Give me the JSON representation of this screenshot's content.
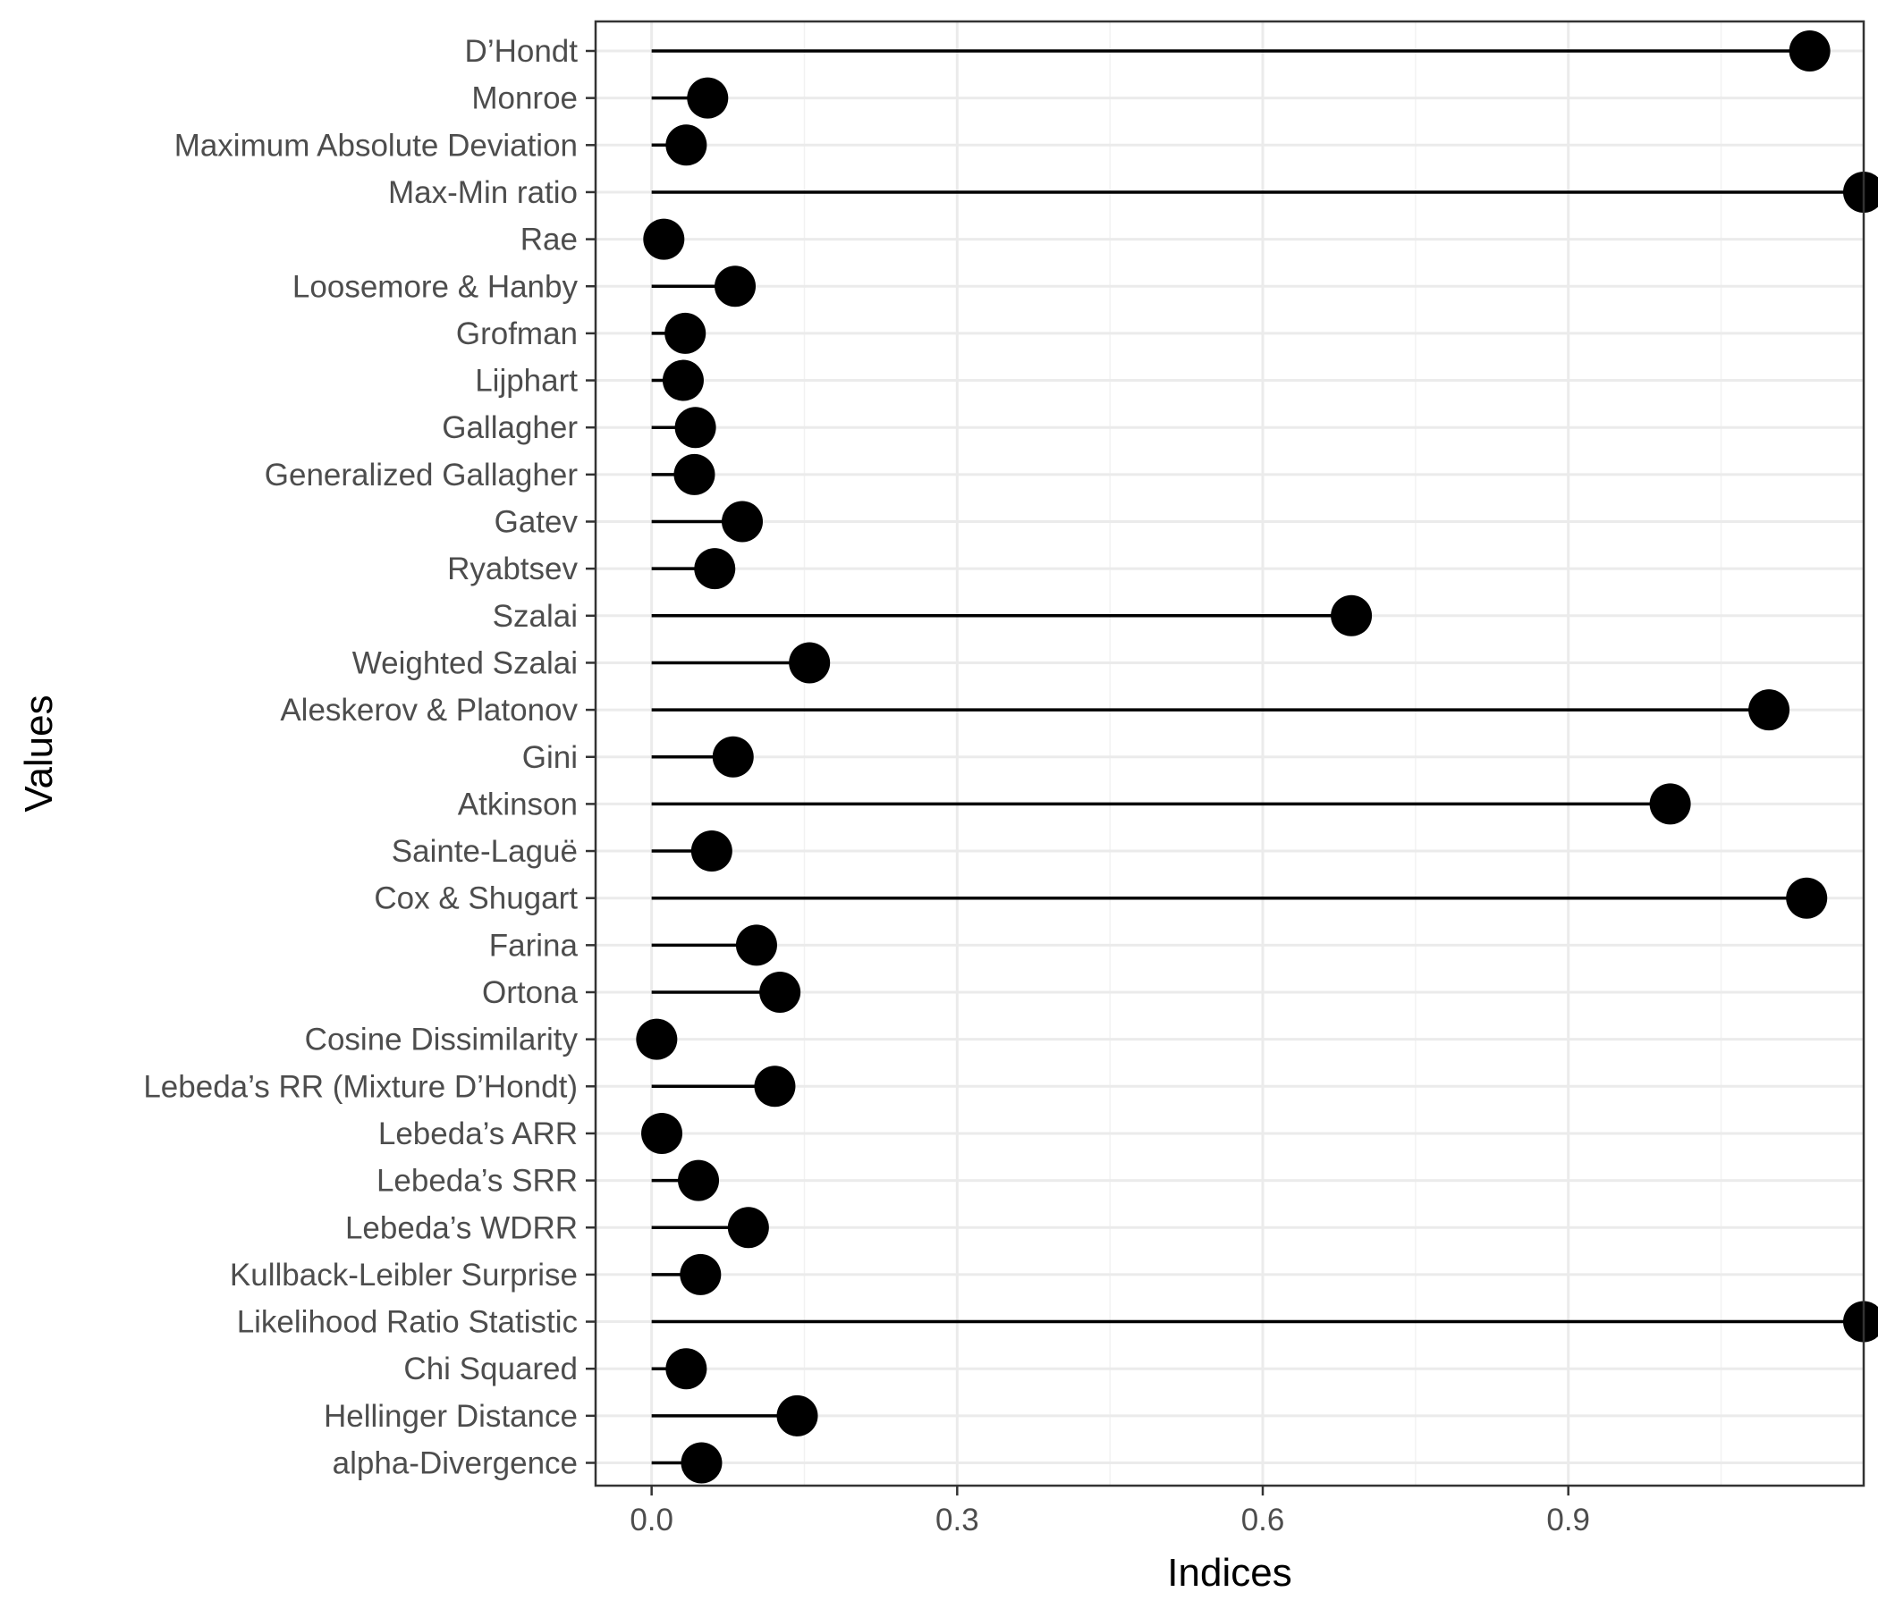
{
  "chart_data": {
    "type": "lollipop",
    "xlabel": "Indices",
    "ylabel": "Values",
    "xlim": [
      -0.055,
      1.19
    ],
    "x_ticks": [
      0.0,
      0.3,
      0.6,
      0.9
    ],
    "x_tick_labels": [
      "0.0",
      "0.3",
      "0.6",
      "0.9"
    ],
    "grid": true,
    "categories": [
      "D’Hondt",
      "Monroe",
      "Maximum Absolute Deviation",
      "Max-Min ratio",
      "Rae",
      "Loosemore & Hanby",
      "Grofman",
      "Lijphart",
      "Gallagher",
      "Generalized Gallagher",
      "Gatev",
      "Ryabtsev",
      "Szalai",
      "Weighted Szalai",
      "Aleskerov & Platonov",
      "Gini",
      "Atkinson",
      "Sainte-Laguë",
      "Cox & Shugart",
      "Farina",
      "Ortona",
      "Cosine Dissimilarity",
      "Lebeda’s RR (Mixture D’Hondt)",
      "Lebeda’s ARR",
      "Lebeda’s SRR",
      "Lebeda’s WDRR",
      "Kullback-Leibler Surprise",
      "Likelihood Ratio Statistic",
      "Chi Squared",
      "Hellinger Distance",
      "alpha-Divergence"
    ],
    "values": [
      1.137,
      0.055,
      0.034,
      1.19,
      0.012,
      0.082,
      0.033,
      0.031,
      0.043,
      0.042,
      0.089,
      0.062,
      0.687,
      0.155,
      1.097,
      0.08,
      1.0,
      0.059,
      1.134,
      0.103,
      0.126,
      0.005,
      0.121,
      0.01,
      0.046,
      0.095,
      0.048,
      1.19,
      0.034,
      0.143,
      0.049
    ]
  }
}
